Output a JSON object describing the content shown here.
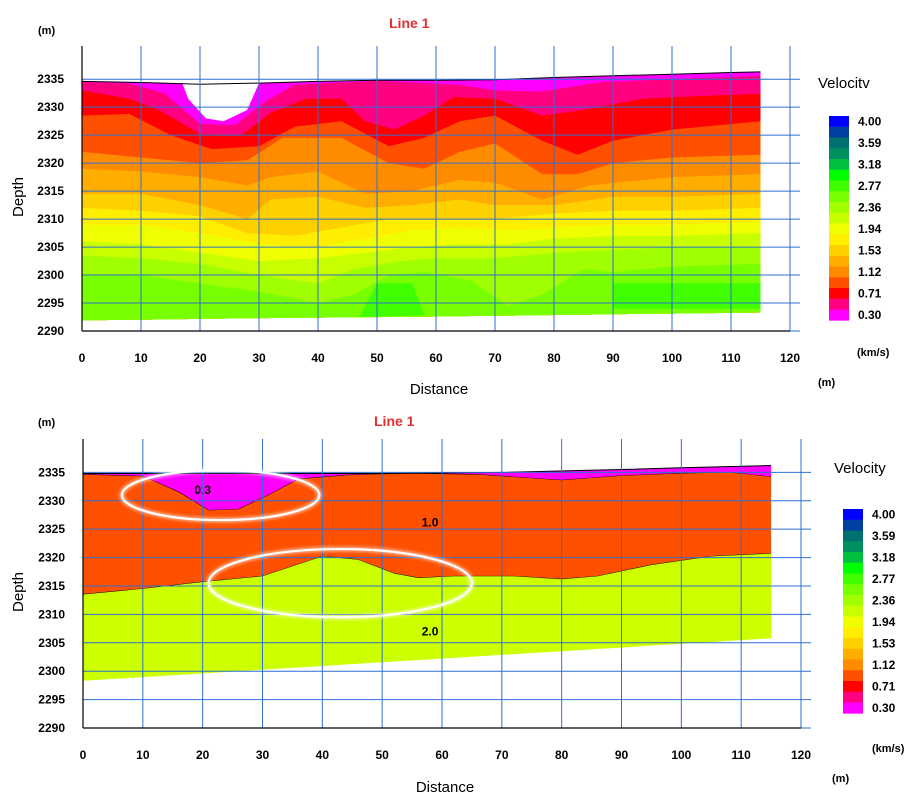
{
  "chart_data": [
    {
      "type": "heatmap",
      "title": "Line 1",
      "xlabel": "Distance",
      "ylabel": "Depth",
      "x_unit": "(m)",
      "y_unit": "(m)",
      "xlim": [
        0,
        120
      ],
      "ylim": [
        2290,
        2337
      ],
      "x_ticks": [
        0,
        10,
        20,
        30,
        40,
        50,
        60,
        70,
        80,
        90,
        100,
        110,
        120
      ],
      "y_ticks": [
        2335,
        2330,
        2325,
        2320,
        2315,
        2310,
        2305,
        2300,
        2295,
        2290
      ],
      "grid": true,
      "legend": {
        "title": "Velocitv",
        "unit": "(km/s)",
        "placement": "right",
        "ticks": [
          "4.00",
          "3.59",
          "3.18",
          "2.77",
          "2.36",
          "1.94",
          "1.53",
          "1.12",
          "0.71",
          "0.30"
        ]
      },
      "surface_top": [
        [
          0,
          2334.6
        ],
        [
          10,
          2334.4
        ],
        [
          20,
          2334.1
        ],
        [
          30,
          2334.3
        ],
        [
          40,
          2334.6
        ],
        [
          50,
          2334.8
        ],
        [
          60,
          2334.8
        ],
        [
          70,
          2334.9
        ],
        [
          80,
          2335.3
        ],
        [
          90,
          2335.6
        ],
        [
          100,
          2335.9
        ],
        [
          110,
          2336.2
        ],
        [
          115,
          2336.3
        ]
      ],
      "bottom": [
        [
          0,
          2291.9
        ],
        [
          30,
          2292.3
        ],
        [
          60,
          2292.6
        ],
        [
          90,
          2293.0
        ],
        [
          115,
          2293.3
        ]
      ],
      "velocity_bands": [
        {
          "velocity": 0.3,
          "upper_boundary": [
            [
              0,
              2334.6
            ],
            [
              10,
              2334.4
            ],
            [
              17,
              2334.3
            ],
            [
              18,
              2331.5
            ],
            [
              21,
              2328.0
            ],
            [
              24,
              2327.5
            ],
            [
              28,
              2329.5
            ],
            [
              30,
              2334.3
            ],
            [
              50,
              2334.8
            ],
            [
              70,
              2334.9
            ],
            [
              80,
              2335.3
            ],
            [
              90,
              2335.6
            ],
            [
              115,
              2336.3
            ]
          ]
        },
        {
          "velocity": 0.5,
          "upper_boundary": [
            [
              0,
              2334.5
            ],
            [
              8,
              2334.2
            ],
            [
              14,
              2332.5
            ],
            [
              20,
              2327.0
            ],
            [
              26,
              2326.8
            ],
            [
              31,
              2331.0
            ],
            [
              36,
              2334.0
            ],
            [
              50,
              2334.7
            ],
            [
              64,
              2334.0
            ],
            [
              70,
              2333.0
            ],
            [
              78,
              2332.8
            ],
            [
              88,
              2334.5
            ],
            [
              100,
              2335.0
            ],
            [
              115,
              2335.6
            ]
          ]
        },
        {
          "velocity": 0.71,
          "upper_boundary": [
            [
              0,
              2333.0
            ],
            [
              8,
              2331.5
            ],
            [
              13,
              2329.5
            ],
            [
              20,
              2325.2
            ],
            [
              27,
              2325.0
            ],
            [
              32,
              2329.0
            ],
            [
              38,
              2331.5
            ],
            [
              44,
              2331.5
            ],
            [
              48,
              2327.5
            ],
            [
              53,
              2326.0
            ],
            [
              58,
              2328.5
            ],
            [
              63,
              2331.8
            ],
            [
              70,
              2331.5
            ],
            [
              78,
              2328.5
            ],
            [
              85,
              2329.5
            ],
            [
              95,
              2331.5
            ],
            [
              105,
              2332.0
            ],
            [
              115,
              2332.4
            ]
          ]
        },
        {
          "velocity": 0.91,
          "upper_boundary": [
            [
              0,
              2328.5
            ],
            [
              8,
              2328.8
            ],
            [
              15,
              2325.0
            ],
            [
              22,
              2322.5
            ],
            [
              30,
              2323.0
            ],
            [
              36,
              2326.5
            ],
            [
              44,
              2327.5
            ],
            [
              52,
              2323.0
            ],
            [
              58,
              2324.5
            ],
            [
              64,
              2327.5
            ],
            [
              70,
              2328.5
            ],
            [
              78,
              2324.0
            ],
            [
              84,
              2321.5
            ],
            [
              90,
              2324.0
            ],
            [
              100,
              2326.0
            ],
            [
              115,
              2327.5
            ]
          ]
        },
        {
          "velocity": 1.12,
          "upper_boundary": [
            [
              0,
              2322.0
            ],
            [
              10,
              2321.0
            ],
            [
              20,
              2320.0
            ],
            [
              28,
              2320.5
            ],
            [
              34,
              2324.5
            ],
            [
              44,
              2324.5
            ],
            [
              52,
              2320.0
            ],
            [
              58,
              2319.0
            ],
            [
              64,
              2322.0
            ],
            [
              70,
              2323.5
            ],
            [
              78,
              2318.0
            ],
            [
              84,
              2318.0
            ],
            [
              90,
              2320.0
            ],
            [
              100,
              2321.0
            ],
            [
              115,
              2321.5
            ]
          ]
        },
        {
          "velocity": 1.32,
          "upper_boundary": [
            [
              0,
              2319.0
            ],
            [
              10,
              2318.5
            ],
            [
              20,
              2317.5
            ],
            [
              28,
              2316.0
            ],
            [
              32,
              2317.5
            ],
            [
              40,
              2318.5
            ],
            [
              48,
              2314.5
            ],
            [
              56,
              2315.0
            ],
            [
              64,
              2317.0
            ],
            [
              70,
              2316.5
            ],
            [
              78,
              2313.5
            ],
            [
              86,
              2316.0
            ],
            [
              100,
              2317.5
            ],
            [
              115,
              2318.0
            ]
          ]
        },
        {
          "velocity": 1.53,
          "upper_boundary": [
            [
              0,
              2314.5
            ],
            [
              10,
              2314.5
            ],
            [
              20,
              2312.5
            ],
            [
              28,
              2310.0
            ],
            [
              32,
              2313.5
            ],
            [
              40,
              2314.0
            ],
            [
              48,
              2312.0
            ],
            [
              56,
              2312.5
            ],
            [
              64,
              2313.5
            ],
            [
              70,
              2312.5
            ],
            [
              80,
              2312.5
            ],
            [
              90,
              2314.0
            ],
            [
              100,
              2314.0
            ],
            [
              115,
              2314.5
            ]
          ]
        },
        {
          "velocity": 1.73,
          "upper_boundary": [
            [
              0,
              2312.0
            ],
            [
              10,
              2311.5
            ],
            [
              20,
              2310.5
            ],
            [
              28,
              2307.5
            ],
            [
              36,
              2307.0
            ],
            [
              44,
              2308.5
            ],
            [
              52,
              2310.0
            ],
            [
              60,
              2310.0
            ],
            [
              70,
              2310.0
            ],
            [
              80,
              2311.0
            ],
            [
              90,
              2311.5
            ],
            [
              100,
              2311.5
            ],
            [
              115,
              2312.0
            ]
          ]
        },
        {
          "velocity": 1.94,
          "upper_boundary": [
            [
              0,
              2309.0
            ],
            [
              10,
              2309.0
            ],
            [
              20,
              2307.5
            ],
            [
              30,
              2305.5
            ],
            [
              40,
              2305.0
            ],
            [
              48,
              2306.5
            ],
            [
              56,
              2308.0
            ],
            [
              64,
              2308.5
            ],
            [
              72,
              2308.0
            ],
            [
              80,
              2308.5
            ],
            [
              90,
              2309.0
            ],
            [
              100,
              2309.0
            ],
            [
              115,
              2309.5
            ]
          ]
        },
        {
          "velocity": 2.15,
          "upper_boundary": [
            [
              0,
              2306.0
            ],
            [
              10,
              2305.5
            ],
            [
              20,
              2304.0
            ],
            [
              30,
              2302.5
            ],
            [
              40,
              2303.0
            ],
            [
              48,
              2304.0
            ],
            [
              56,
              2305.0
            ],
            [
              64,
              2305.5
            ],
            [
              72,
              2305.5
            ],
            [
              80,
              2306.5
            ],
            [
              90,
              2307.0
            ],
            [
              100,
              2307.0
            ],
            [
              115,
              2307.5
            ]
          ]
        },
        {
          "velocity": 2.36,
          "upper_boundary": [
            [
              0,
              2303.5
            ],
            [
              10,
              2303.0
            ],
            [
              20,
              2302.0
            ],
            [
              30,
              2300.0
            ],
            [
              40,
              2298.5
            ],
            [
              46,
              2301.0
            ],
            [
              54,
              2302.5
            ],
            [
              60,
              2303.0
            ],
            [
              70,
              2303.0
            ],
            [
              80,
              2304.0
            ],
            [
              90,
              2304.5
            ],
            [
              100,
              2305.0
            ],
            [
              115,
              2305.0
            ]
          ]
        },
        {
          "velocity": 2.56,
          "upper_boundary": [
            [
              0,
              2300.0
            ],
            [
              10,
              2300.0
            ],
            [
              20,
              2298.5
            ],
            [
              30,
              2297.0
            ],
            [
              40,
              2295.0
            ],
            [
              46,
              2296.5
            ],
            [
              52,
              2300.0
            ],
            [
              58,
              2300.5
            ],
            [
              66,
              2299.0
            ],
            [
              72,
              2294.5
            ],
            [
              78,
              2296.5
            ],
            [
              85,
              2301.0
            ],
            [
              90,
              2300.5
            ],
            [
              100,
              2301.5
            ],
            [
              115,
              2302.0
            ]
          ]
        },
        {
          "velocity": 2.77,
          "upper_boundary": [
            [
              90,
              2298.5
            ],
            [
              115,
              2298.5
            ],
            [
              115,
              2294.0
            ],
            [
              90,
              2294.0
            ]
          ],
          "closed": true
        },
        {
          "velocity": 2.77,
          "upper_boundary": [
            [
              50,
              2298.5
            ],
            [
              56,
              2298.5
            ],
            [
              58,
              2292.8
            ],
            [
              47,
              2292.5
            ]
          ],
          "closed": true
        }
      ]
    },
    {
      "type": "heatmap",
      "title": "Line 1",
      "xlabel": "Distance",
      "ylabel": "Depth",
      "x_unit": "(m)",
      "y_unit": "(m)",
      "xlim": [
        0,
        120
      ],
      "ylim": [
        2290,
        2337
      ],
      "x_ticks": [
        0,
        10,
        20,
        30,
        40,
        50,
        60,
        70,
        80,
        90,
        100,
        110,
        120
      ],
      "y_ticks": [
        2335,
        2330,
        2325,
        2320,
        2315,
        2310,
        2305,
        2300,
        2295,
        2290
      ],
      "grid": true,
      "legend": {
        "title": "Velocity",
        "unit": "(km/s)",
        "placement": "right",
        "ticks": [
          "4.00",
          "3.59",
          "3.18",
          "2.77",
          "2.36",
          "1.94",
          "1.53",
          "1.12",
          "0.71",
          "0.30"
        ]
      },
      "layers": [
        {
          "velocity": 0.3,
          "label": "0.3",
          "label_at": [
            20,
            2331.2
          ],
          "top": [
            [
              0,
              2334.8
            ],
            [
              50,
              2334.8
            ],
            [
              70,
              2335.0
            ],
            [
              90,
              2335.5
            ],
            [
              100,
              2335.8
            ],
            [
              115,
              2336.2
            ]
          ],
          "base": [
            [
              0,
              2334.6
            ],
            [
              10,
              2334.3
            ],
            [
              16,
              2331.5
            ],
            [
              21,
              2328.3
            ],
            [
              26,
              2328.5
            ],
            [
              31,
              2331.0
            ],
            [
              36,
              2333.8
            ],
            [
              44,
              2334.5
            ],
            [
              54,
              2334.8
            ],
            [
              66,
              2334.6
            ],
            [
              80,
              2333.6
            ],
            [
              90,
              2334.4
            ],
            [
              100,
              2334.8
            ],
            [
              108,
              2335.0
            ],
            [
              115,
              2334.2
            ]
          ]
        },
        {
          "velocity": 1.0,
          "label": "1.0",
          "label_at": [
            58,
            2325.5
          ],
          "base": [
            [
              0,
              2313.5
            ],
            [
              10,
              2314.5
            ],
            [
              20,
              2315.7
            ],
            [
              30,
              2316.7
            ],
            [
              40,
              2320.2
            ],
            [
              46,
              2319.6
            ],
            [
              52,
              2317.2
            ],
            [
              56,
              2316.4
            ],
            [
              62,
              2316.7
            ],
            [
              72,
              2316.7
            ],
            [
              80,
              2316.2
            ],
            [
              86,
              2316.7
            ],
            [
              95,
              2318.7
            ],
            [
              105,
              2320.2
            ],
            [
              115,
              2320.7
            ]
          ]
        },
        {
          "velocity": 2.0,
          "label": "2.0",
          "label_at": [
            58,
            2306.3
          ],
          "base": [
            [
              0,
              2298.3
            ],
            [
              115,
              2305.8
            ]
          ]
        }
      ],
      "highlight_ellipses": [
        {
          "cx": 23,
          "cy": 2331.0,
          "rx": 16.5,
          "ry": 4.4
        },
        {
          "cx": 43,
          "cy": 2315.5,
          "rx": 22,
          "ry": 6.0
        }
      ]
    }
  ]
}
